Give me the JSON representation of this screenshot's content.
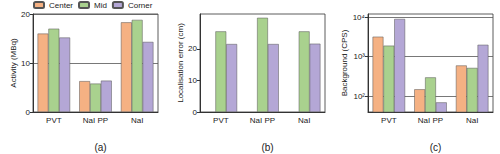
{
  "chart_data": [
    {
      "type": "bar",
      "title": "(a)",
      "ylabel": "Activity (MBq)",
      "categories": [
        "PVT",
        "NaI PP",
        "NaI"
      ],
      "series": [
        {
          "name": "Center",
          "color": "#f5b183",
          "values": [
            16.0,
            6.3,
            18.3
          ]
        },
        {
          "name": "Mid",
          "color": "#a9d18e",
          "values": [
            17.0,
            5.8,
            18.8
          ]
        },
        {
          "name": "Corner",
          "color": "#b4a7d6",
          "values": [
            15.2,
            6.4,
            14.3
          ]
        }
      ],
      "ylim": [
        0,
        20
      ],
      "yticks": [
        0,
        10,
        20
      ],
      "grid": true,
      "legend": "upper left"
    },
    {
      "type": "bar",
      "title": "(b)",
      "ylabel": "Localisation error (cm)",
      "categories": [
        "PVT",
        "NaI PP",
        "NaI"
      ],
      "series": [
        {
          "name": "Center",
          "color": "#f5b183",
          "values": [
            null,
            null,
            null
          ]
        },
        {
          "name": "Mid",
          "color": "#a9d18e",
          "values": [
            25.5,
            29.8,
            25.5
          ]
        },
        {
          "name": "Corner",
          "color": "#b4a7d6",
          "values": [
            21.5,
            21.5,
            21.6
          ]
        }
      ],
      "ylim": [
        0,
        31
      ],
      "yticks": [
        0,
        10,
        20
      ],
      "grid": false
    },
    {
      "type": "bar",
      "title": "(c)",
      "ylabel": "Background (CPS)",
      "categories": [
        "PVT",
        "NaI PP",
        "NaI"
      ],
      "series": [
        {
          "name": "Center",
          "color": "#f5b183",
          "values": [
            3200,
            150,
            600
          ]
        },
        {
          "name": "Mid",
          "color": "#a9d18e",
          "values": [
            1900,
            300,
            520
          ]
        },
        {
          "name": "Corner",
          "color": "#b4a7d6",
          "values": [
            9000,
            70,
            2000
          ]
        }
      ],
      "ylim": [
        40,
        12000
      ],
      "log": "y",
      "yticks": [
        {
          "value": 100,
          "label": "10²"
        },
        {
          "value": 1000,
          "label": "10³"
        },
        {
          "value": 10000,
          "label": "10⁴"
        }
      ],
      "grid": true
    }
  ]
}
